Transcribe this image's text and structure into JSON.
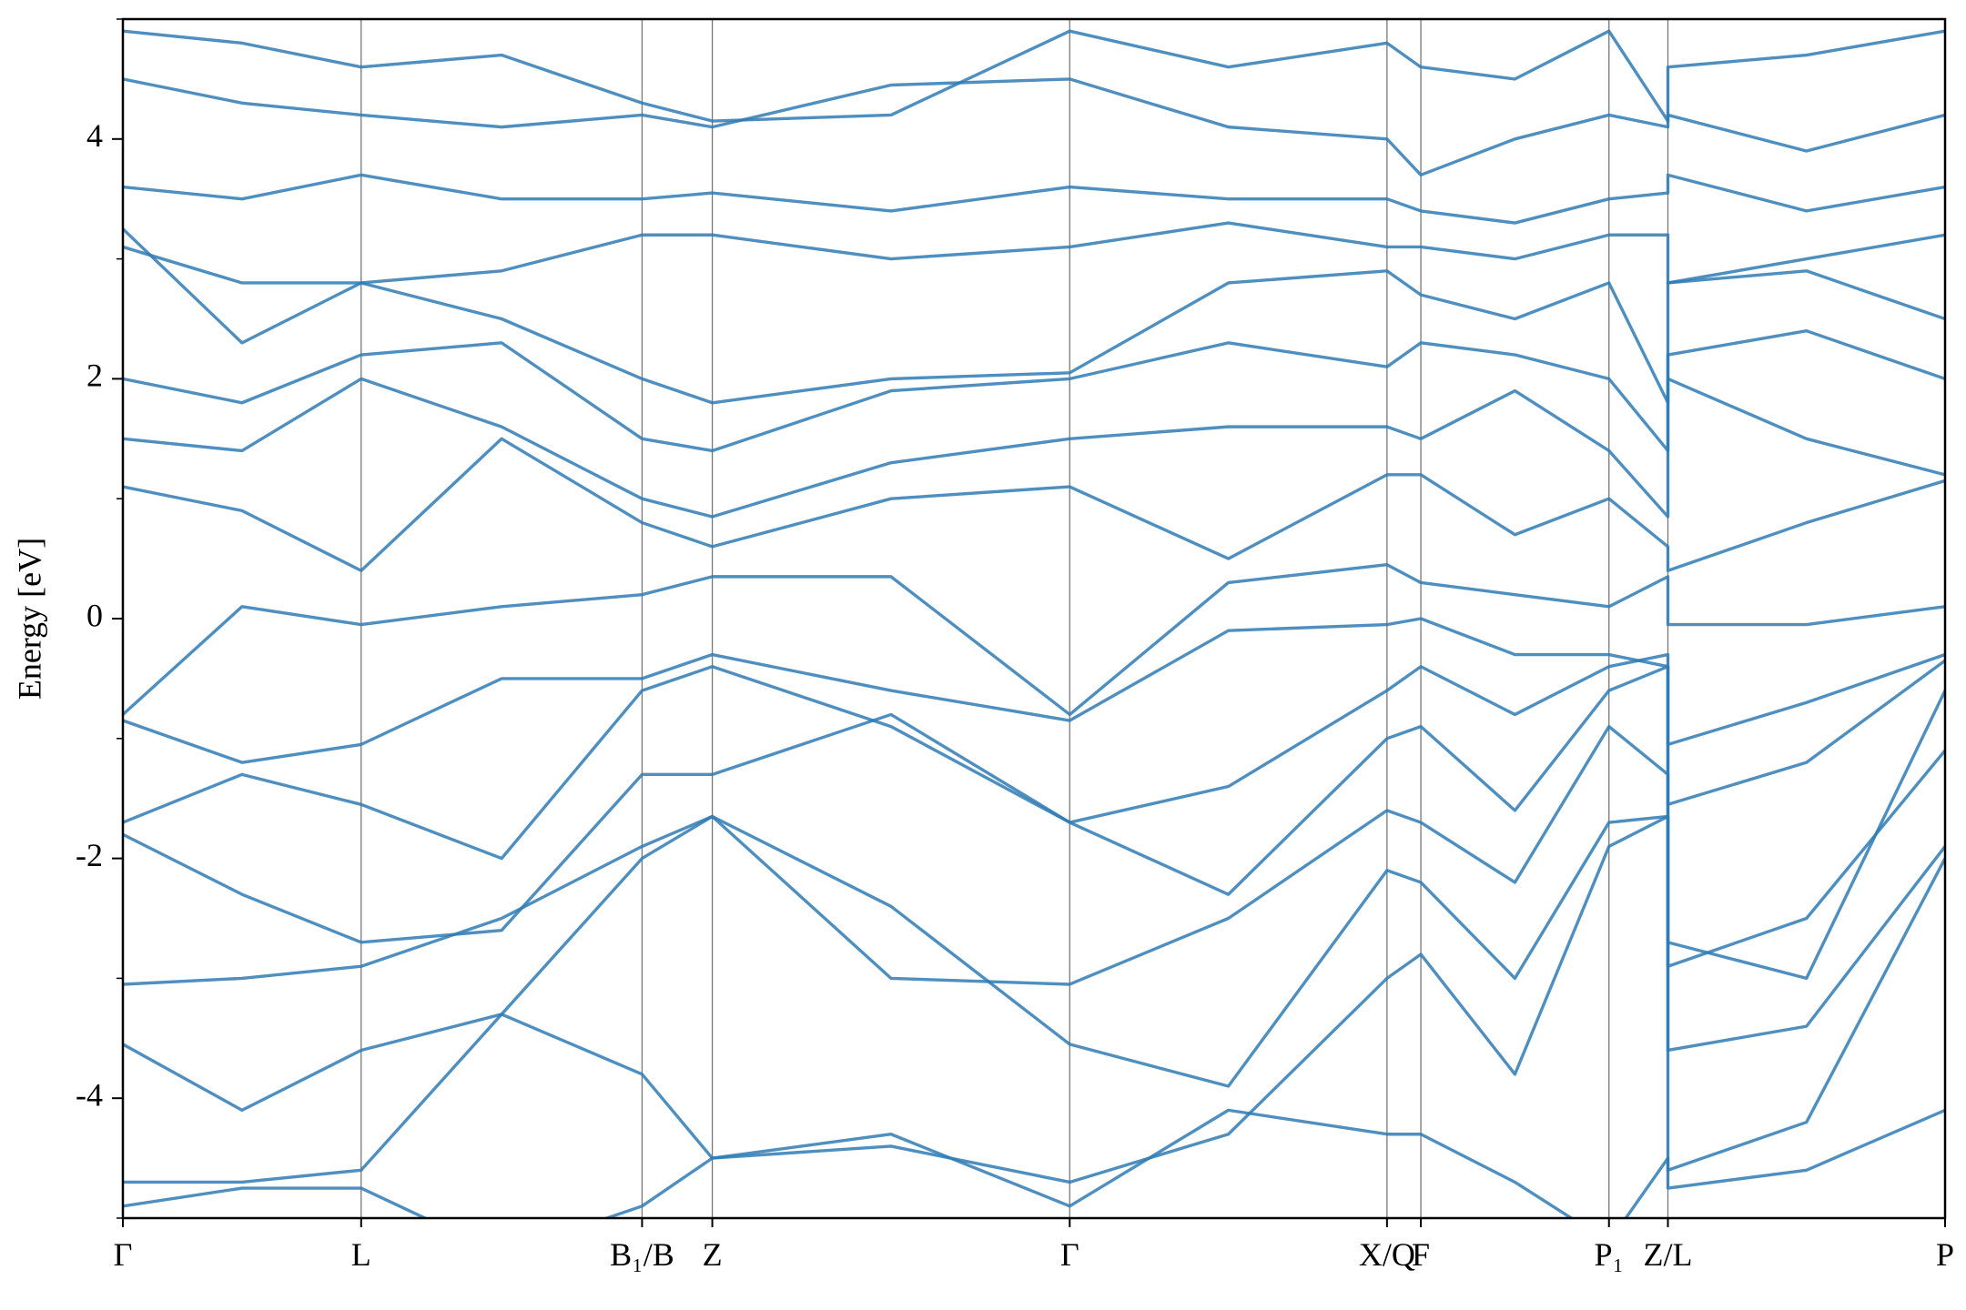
{
  "chart_data": {
    "type": "line",
    "ylabel": "Energy [eV]",
    "color": "#2f7bb5",
    "x": [
      0,
      0.095,
      0.19,
      0.302,
      0.414,
      0.47,
      0.6125,
      0.755,
      0.8815,
      1.008,
      1.035,
      1.11,
      1.185,
      1.232,
      1.232,
      1.3425,
      1.453
    ],
    "xlim": [
      0,
      1.453
    ],
    "xticks": [
      {
        "value": 0,
        "label": "Γ"
      },
      {
        "value": 0.19,
        "label": "L"
      },
      {
        "value": 0.414,
        "label": "B₁/B"
      },
      {
        "value": 0.47,
        "label": "Z"
      },
      {
        "value": 0.755,
        "label": "Γ"
      },
      {
        "value": 1.008,
        "label": "X/Q"
      },
      {
        "value": 1.035,
        "label": "F"
      },
      {
        "value": 1.185,
        "label": "P₁"
      },
      {
        "value": 1.232,
        "label": "Z/L"
      },
      {
        "value": 1.453,
        "label": "P"
      }
    ],
    "xgrid": true,
    "ylim": [
      -5,
      5
    ],
    "yticks": [
      -4,
      -2,
      0,
      2,
      4
    ],
    "yminorticks": [
      -5,
      -3,
      -1,
      1,
      3,
      5
    ],
    "series": [
      {
        "values": [
          -4.9,
          -4.75,
          -4.75,
          -5.3,
          -4.9,
          -4.5,
          -4.3,
          -4.9,
          -4.1,
          -4.3,
          -4.3,
          -4.7,
          -5.2,
          -4.5,
          -4.75,
          -4.6,
          -4.1
        ]
      },
      {
        "values": [
          -4.7,
          -4.7,
          -4.6,
          -3.3,
          -3.8,
          -4.5,
          -4.4,
          -4.7,
          -4.3,
          -3.0,
          -2.8,
          -3.8,
          -1.9,
          -1.65,
          -4.6,
          -4.2,
          -2.0
        ]
      },
      {
        "values": [
          -3.55,
          -4.1,
          -3.6,
          -3.3,
          -2.0,
          -1.65,
          -2.4,
          -3.55,
          -3.9,
          -2.1,
          -2.2,
          -3.0,
          -1.7,
          -1.65,
          -3.6,
          -3.4,
          -1.9
        ]
      },
      {
        "values": [
          -3.05,
          -3.0,
          -2.9,
          -2.5,
          -1.9,
          -1.65,
          -3.0,
          -3.05,
          -2.5,
          -1.6,
          -1.7,
          -2.2,
          -0.9,
          -1.3,
          -2.9,
          -2.5,
          -1.1
        ]
      },
      {
        "values": [
          -1.8,
          -2.3,
          -2.7,
          -2.6,
          -1.3,
          -1.3,
          -0.8,
          -1.7,
          -2.3,
          -1.0,
          -0.9,
          -1.6,
          -0.6,
          -0.4,
          -2.7,
          -3.0,
          -0.6
        ]
      },
      {
        "values": [
          -1.7,
          -1.3,
          -1.55,
          -2.0,
          -0.6,
          -0.4,
          -0.9,
          -1.7,
          -1.4,
          -0.6,
          -0.4,
          -0.8,
          -0.4,
          -0.3,
          -1.55,
          -1.2,
          -0.35
        ]
      },
      {
        "values": [
          -0.85,
          -1.2,
          -1.05,
          -0.5,
          -0.5,
          -0.3,
          -0.6,
          -0.85,
          -0.1,
          -0.05,
          0.0,
          -0.3,
          -0.3,
          -0.4,
          -1.05,
          -0.7,
          -0.3
        ]
      },
      {
        "values": [
          -0.8,
          0.1,
          -0.05,
          0.1,
          0.2,
          0.35,
          0.35,
          -0.8,
          0.3,
          0.45,
          0.3,
          0.2,
          0.1,
          0.35,
          -0.05,
          -0.05,
          0.1
        ]
      },
      {
        "values": [
          1.1,
          0.9,
          0.4,
          1.5,
          0.8,
          0.6,
          1.0,
          1.1,
          0.5,
          1.2,
          1.2,
          0.7,
          1.0,
          0.6,
          0.4,
          0.8,
          1.15
        ]
      },
      {
        "values": [
          1.5,
          1.4,
          2.0,
          1.6,
          1.0,
          0.85,
          1.3,
          1.5,
          1.6,
          1.6,
          1.5,
          1.9,
          1.4,
          0.85,
          2.0,
          1.5,
          1.2
        ]
      },
      {
        "values": [
          2.0,
          1.8,
          2.2,
          2.3,
          1.5,
          1.4,
          1.9,
          2.0,
          2.3,
          2.1,
          2.3,
          2.2,
          2.0,
          1.4,
          2.2,
          2.4,
          2.0
        ]
      },
      {
        "values": [
          3.1,
          2.8,
          2.8,
          2.5,
          2.0,
          1.8,
          2.0,
          2.05,
          2.8,
          2.9,
          2.7,
          2.5,
          2.8,
          1.8,
          2.8,
          2.9,
          2.5
        ]
      },
      {
        "values": [
          3.25,
          2.3,
          2.8,
          2.9,
          3.2,
          3.2,
          3.0,
          3.1,
          3.3,
          3.1,
          3.1,
          3.0,
          3.2,
          3.2,
          2.8,
          3.0,
          3.2
        ]
      },
      {
        "values": [
          3.6,
          3.5,
          3.7,
          3.5,
          3.5,
          3.55,
          3.4,
          3.6,
          3.5,
          3.5,
          3.4,
          3.3,
          3.5,
          3.55,
          3.7,
          3.4,
          3.6
        ]
      },
      {
        "values": [
          4.5,
          4.3,
          4.2,
          4.1,
          4.2,
          4.1,
          4.45,
          4.5,
          4.1,
          4.0,
          3.7,
          4.0,
          4.2,
          4.1,
          4.2,
          3.9,
          4.2
        ]
      },
      {
        "values": [
          4.9,
          4.8,
          4.6,
          4.7,
          4.3,
          4.15,
          4.2,
          4.9,
          4.6,
          4.8,
          4.6,
          4.5,
          4.9,
          4.15,
          4.6,
          4.7,
          4.9
        ]
      }
    ]
  }
}
